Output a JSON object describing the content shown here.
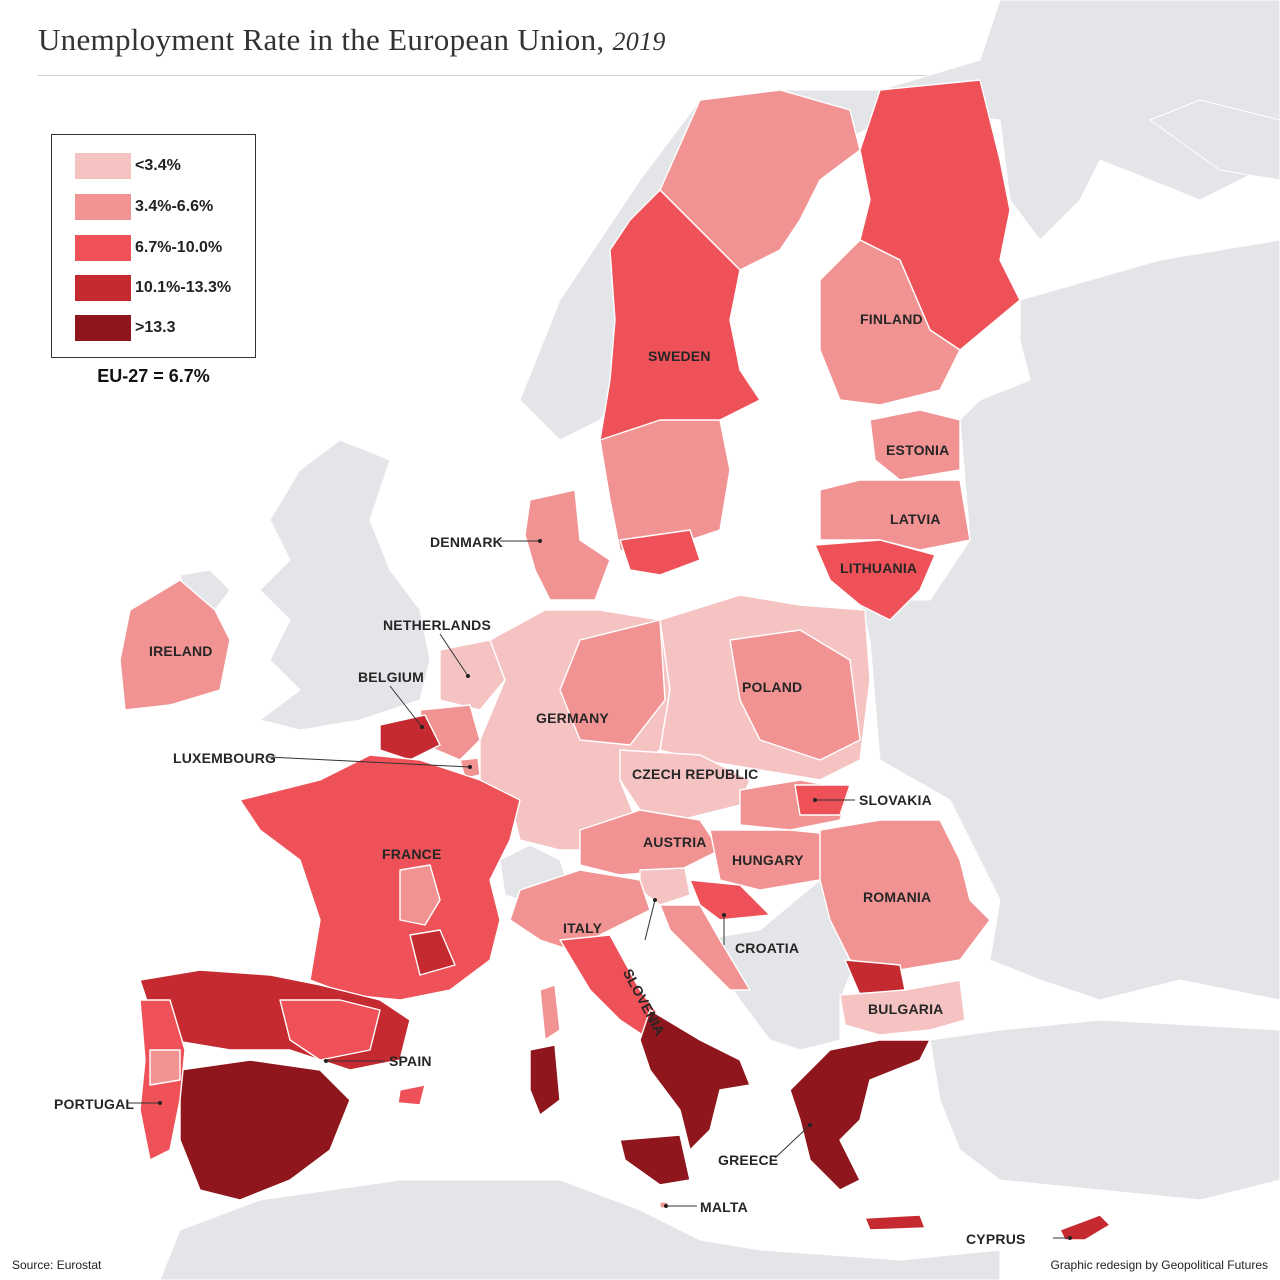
{
  "title": "Unemployment Rate in the European Union,",
  "year": "2019",
  "legend": {
    "items": [
      {
        "label": "<3.4%",
        "color": "#f6c3c3"
      },
      {
        "label": "3.4%-6.6%",
        "color": "#f29393"
      },
      {
        "label": "6.7%-10.0%",
        "color": "#ee5157"
      },
      {
        "label": "10.1%-13.3%",
        "color": "#c42a30"
      },
      {
        "label": ">13.3",
        "color": "#8f161c"
      }
    ],
    "eu_average": "EU-27 = 6.7%"
  },
  "countries": {
    "sweden": "SWEDEN",
    "finland": "FINLAND",
    "estonia": "ESTONIA",
    "latvia": "LATVIA",
    "lithuania": "LITHUANIA",
    "denmark": "DENMARK",
    "netherlands": "NETHERLANDS",
    "ireland": "IRELAND",
    "belgium": "BELGIUM",
    "germany": "GERMANY",
    "poland": "POLAND",
    "luxembourg": "LUXEMBOURG",
    "czech_republic": "CZECH REPUBLIC",
    "slovakia": "SLOVAKIA",
    "austria": "AUSTRIA",
    "hungary": "HUNGARY",
    "france": "FRANCE",
    "romania": "ROMANIA",
    "italy": "ITALY",
    "croatia": "CROATIA",
    "slovenia": "SLOVENIA",
    "bulgaria": "BULGARIA",
    "spain": "SPAIN",
    "portugal": "PORTUGAL",
    "greece": "GREECE",
    "malta": "MALTA",
    "cyprus": "CYPRUS"
  },
  "colors": {
    "land_non_eu": "#e4e5e8",
    "sea": "#ffffff",
    "border": "#ffffff"
  },
  "footer": {
    "source": "Source: Eurostat",
    "credit": "Graphic redesign by Geopolitical Futures"
  }
}
